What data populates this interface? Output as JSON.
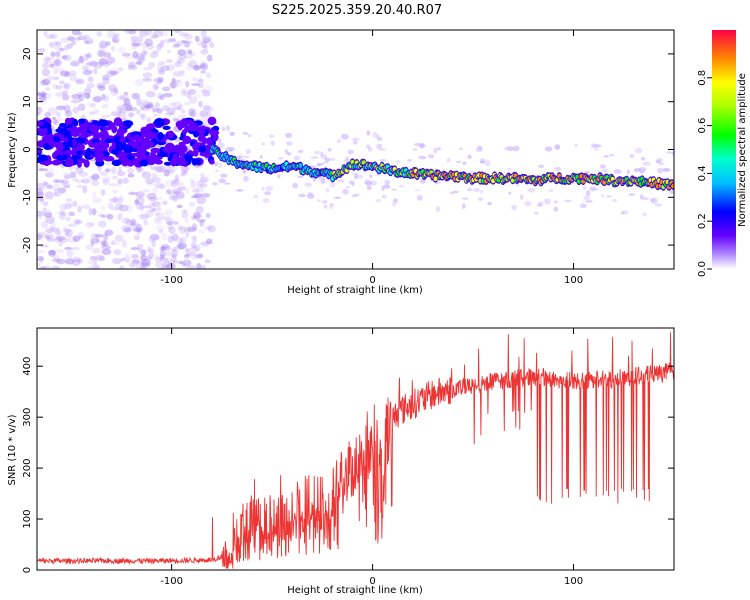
{
  "title": "S225.2025.359.20.40.R07",
  "chart_data": [
    {
      "type": "heatmap",
      "name": "spectrogram",
      "xlabel": "Height of straight line (km)",
      "ylabel": "Frequency (Hz)",
      "xlim": [
        -167,
        150
      ],
      "ylim": [
        -25,
        25
      ],
      "x_ticks": [
        -100,
        0,
        100
      ],
      "y_ticks": [
        20,
        10,
        0,
        -10,
        -20
      ],
      "colorbar": {
        "label": "Normalized spectral amplitude",
        "range": [
          0,
          1
        ],
        "ticks": [
          "0.0",
          "0.2",
          "0.4",
          "0.6",
          "0.8"
        ],
        "tick_values": [
          0.0,
          0.2,
          0.4,
          0.6,
          0.8
        ]
      },
      "ridge": {
        "x": [
          -80,
          -70,
          -60,
          -50,
          -40,
          -30,
          -20,
          -10,
          0,
          10,
          20,
          30,
          40,
          50,
          60,
          70,
          80,
          90,
          100,
          110,
          120,
          130,
          140,
          150
        ],
        "freq": [
          0,
          -2.5,
          -3.5,
          -4,
          -3.5,
          -4.5,
          -5.5,
          -3,
          -3.5,
          -4.5,
          -5,
          -5.5,
          -5.5,
          -6,
          -6,
          -6,
          -6.5,
          -6,
          -6,
          -6,
          -6.5,
          -6.5,
          -7,
          -7.5
        ]
      }
    },
    {
      "type": "line",
      "name": "snr",
      "xlabel": "Height of straight line (km)",
      "ylabel": "SNR (10 * v/v)",
      "xlim": [
        -167,
        150
      ],
      "ylim": [
        0,
        475
      ],
      "x_ticks": [
        -100,
        0,
        100
      ],
      "y_ticks": [
        0,
        100,
        200,
        300,
        400
      ],
      "color": "#ee3333",
      "x": [
        -167,
        -150,
        -130,
        -110,
        -90,
        -80,
        -72,
        -65,
        -60,
        -55,
        -50,
        -45,
        -40,
        -35,
        -30,
        -25,
        -20,
        -15,
        -10,
        -5,
        0,
        5,
        10,
        15,
        20,
        25,
        30,
        40,
        50,
        60,
        70,
        80,
        90,
        100,
        110,
        120,
        130,
        140,
        150
      ],
      "values": [
        18,
        18,
        18,
        18,
        19,
        20,
        30,
        70,
        90,
        85,
        95,
        100,
        120,
        125,
        135,
        130,
        155,
        200,
        200,
        235,
        245,
        265,
        300,
        315,
        325,
        335,
        345,
        355,
        360,
        370,
        375,
        380,
        375,
        370,
        375,
        375,
        380,
        385,
        390
      ]
    }
  ]
}
